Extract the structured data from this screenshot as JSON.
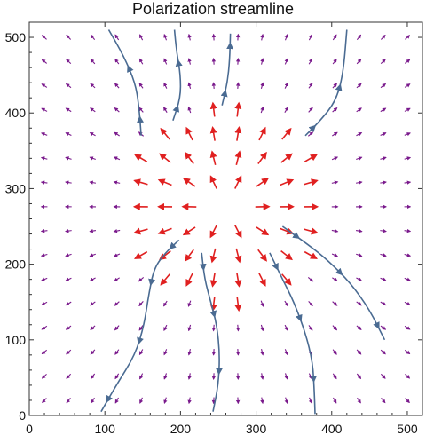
{
  "chart_data": {
    "type": "vector-field",
    "title": "Polarization streamline",
    "xlabel": "",
    "ylabel": "",
    "xlim": [
      0,
      520
    ],
    "ylim": [
      0,
      520
    ],
    "xticks": [
      0,
      100,
      200,
      300,
      400,
      500
    ],
    "yticks": [
      0,
      100,
      200,
      300,
      400,
      500
    ],
    "grid": false,
    "legend": "none",
    "field": {
      "description_kind": "radial",
      "center": [
        260,
        275
      ],
      "sample_spacing": 32,
      "sample_range": [
        20,
        500
      ],
      "strong_radius": 130
    },
    "colors": {
      "strong_arrow": "#e02020",
      "weak_arrow": "#7a1a8c",
      "streamline": "#4a6b92",
      "frame": "#333333"
    },
    "streamlines": [
      {
        "points": [
          [
            148,
            370
          ],
          [
            145,
            410
          ],
          [
            140,
            440
          ],
          [
            125,
            475
          ],
          [
            105,
            510
          ]
        ]
      },
      {
        "points": [
          [
            190,
            390
          ],
          [
            200,
            420
          ],
          [
            200,
            450
          ],
          [
            195,
            480
          ],
          [
            192,
            510
          ]
        ]
      },
      {
        "points": [
          [
            255,
            410
          ],
          [
            262,
            440
          ],
          [
            265,
            470
          ],
          [
            266,
            505
          ]
        ]
      },
      {
        "points": [
          [
            365,
            370
          ],
          [
            385,
            390
          ],
          [
            405,
            415
          ],
          [
            415,
            450
          ],
          [
            420,
            510
          ]
        ]
      },
      {
        "points": [
          [
            198,
            232
          ],
          [
            180,
            215
          ],
          [
            165,
            195
          ],
          [
            158,
            160
          ],
          [
            152,
            120
          ],
          [
            140,
            80
          ],
          [
            115,
            40
          ],
          [
            95,
            5
          ]
        ]
      },
      {
        "points": [
          [
            228,
            215
          ],
          [
            232,
            180
          ],
          [
            240,
            150
          ],
          [
            248,
            120
          ],
          [
            252,
            80
          ],
          [
            250,
            40
          ],
          [
            243,
            5
          ]
        ]
      },
      {
        "points": [
          [
            318,
            215
          ],
          [
            335,
            180
          ],
          [
            350,
            150
          ],
          [
            365,
            110
          ],
          [
            375,
            70
          ],
          [
            377,
            30
          ],
          [
            378,
            2
          ]
        ]
      },
      {
        "points": [
          [
            335,
            250
          ],
          [
            370,
            225
          ],
          [
            395,
            205
          ],
          [
            425,
            175
          ],
          [
            450,
            140
          ],
          [
            470,
            100
          ]
        ]
      }
    ]
  }
}
